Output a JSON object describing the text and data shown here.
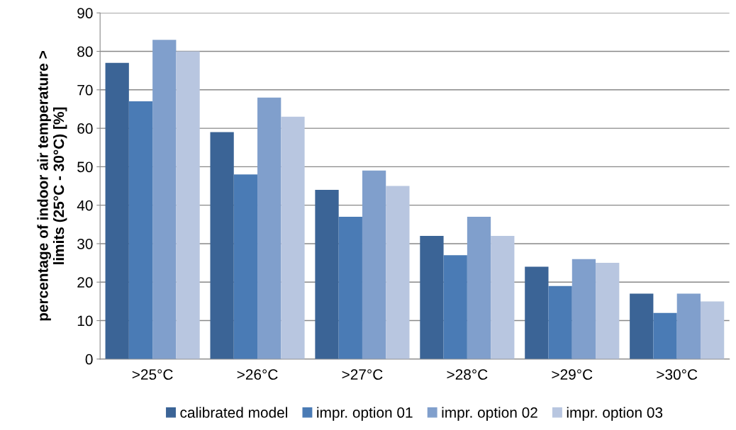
{
  "chart_data": {
    "type": "bar",
    "ylabel": "percentage of indoor air temperature >\nlimits (25°C - 30°C) [%]",
    "categories": [
      ">25°C",
      ">26°C",
      ">27°C",
      ">28°C",
      ">29°C",
      ">30°C"
    ],
    "series": [
      {
        "name": "calibrated model",
        "color": "#3b6496",
        "values": [
          77,
          59,
          44,
          32,
          24,
          17
        ]
      },
      {
        "name": "impr. option 01",
        "color": "#4a7bb5",
        "values": [
          67,
          48,
          37,
          27,
          19,
          12
        ]
      },
      {
        "name": "impr. option 02",
        "color": "#809fcc",
        "values": [
          83,
          68,
          49,
          37,
          26,
          17
        ]
      },
      {
        "name": "impr. option 03",
        "color": "#b8c6e0",
        "values": [
          80,
          63,
          45,
          32,
          25,
          15
        ]
      }
    ],
    "ylim": [
      0,
      90
    ],
    "yticks": [
      0,
      10,
      20,
      30,
      40,
      50,
      60,
      70,
      80,
      90
    ],
    "grid": "y",
    "legend": "bottom"
  }
}
